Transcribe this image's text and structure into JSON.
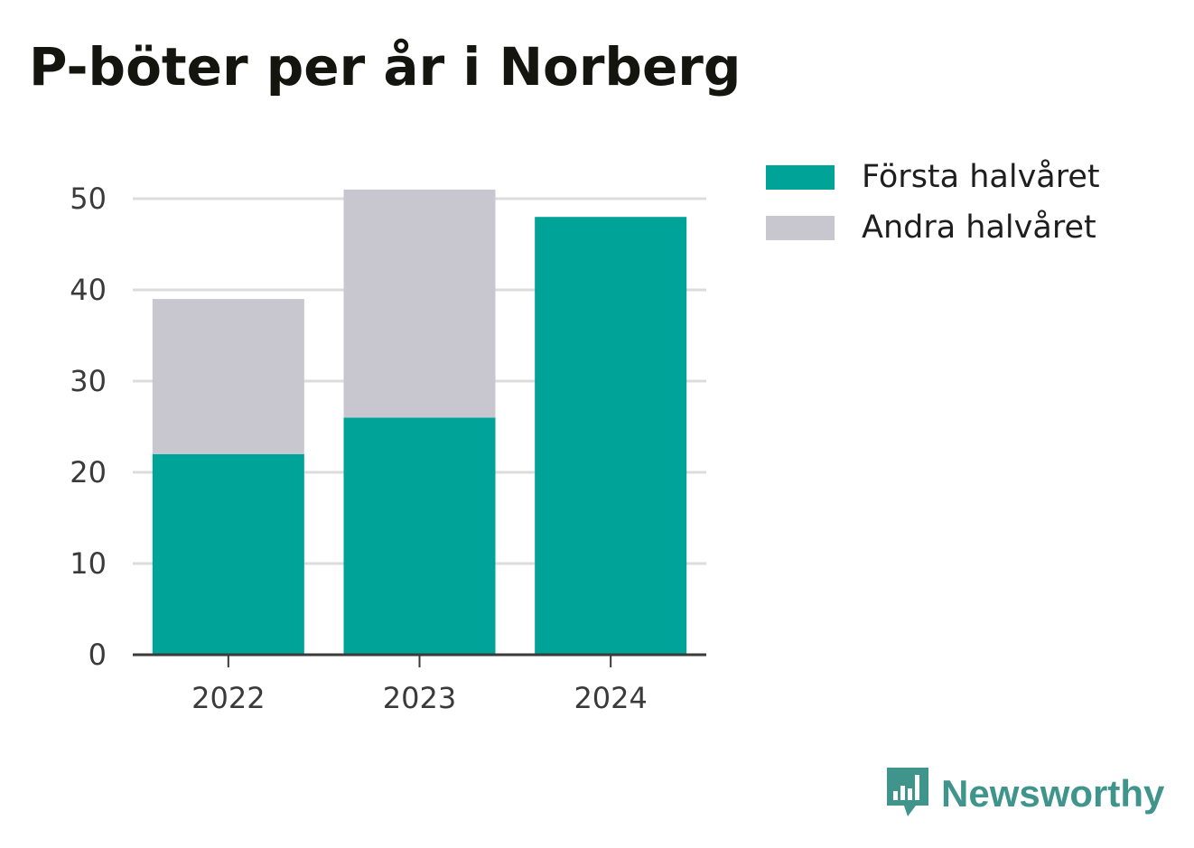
{
  "title": "P-böter per år i Norberg",
  "brand": {
    "name": "Newsworthy",
    "icon": "newsworthy-logo-icon",
    "color": "#3f958c"
  },
  "legend": [
    {
      "label": "Första halvåret",
      "color": "#00a398"
    },
    {
      "label": "Andra halvåret",
      "color": "#c8c7d0"
    }
  ],
  "chart_data": {
    "type": "bar",
    "stacked": true,
    "title": "P-böter per år i Norberg",
    "xlabel": "",
    "ylabel": "",
    "categories": [
      "2022",
      "2023",
      "2024"
    ],
    "series": [
      {
        "name": "Första halvåret",
        "values": [
          22,
          26,
          48
        ],
        "color": "#00a398"
      },
      {
        "name": "Andra halvåret",
        "values": [
          17,
          25,
          0
        ],
        "color": "#c8c7d0"
      }
    ],
    "ylim": [
      0,
      50
    ],
    "yticks": [
      0,
      10,
      20,
      30,
      40,
      50
    ],
    "grid": true,
    "legend_position": "top-right"
  }
}
